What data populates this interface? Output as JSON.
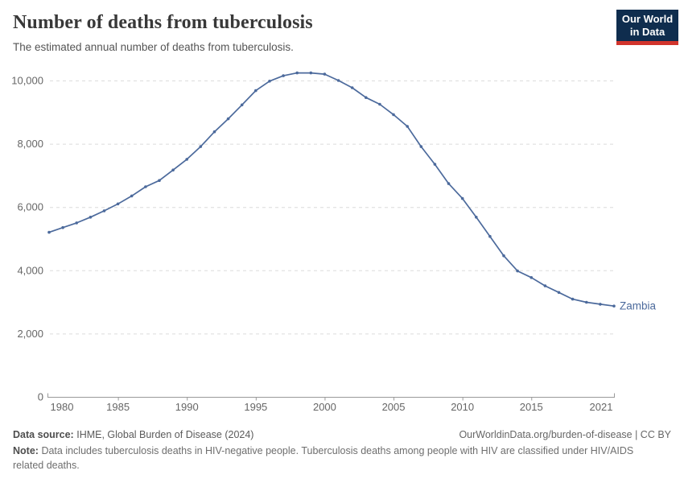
{
  "header": {
    "title": "Number of deaths from tuberculosis",
    "subtitle": "The estimated annual number of deaths from tuberculosis.",
    "logo": {
      "line1": "Our World",
      "line2": "in Data"
    }
  },
  "chart_data": {
    "type": "line",
    "title": "Number of deaths from tuberculosis",
    "xlabel": "",
    "ylabel": "",
    "xlim": [
      1980,
      2021
    ],
    "ylim": [
      0,
      10000
    ],
    "grid": "horizontal-dashed",
    "legend_position": "end-of-line-label",
    "series": [
      {
        "name": "Zambia",
        "x": [
          1980,
          1981,
          1982,
          1983,
          1984,
          1985,
          1986,
          1987,
          1988,
          1989,
          1990,
          1991,
          1992,
          1993,
          1994,
          1995,
          1996,
          1997,
          1998,
          1999,
          2000,
          2001,
          2002,
          2003,
          2004,
          2005,
          2006,
          2007,
          2008,
          2009,
          2010,
          2011,
          2012,
          2013,
          2014,
          2015,
          2016,
          2017,
          2018,
          2019,
          2020,
          2021
        ],
        "values": [
          5200,
          5350,
          5500,
          5680,
          5880,
          6100,
          6350,
          6640,
          6840,
          7170,
          7510,
          7910,
          8380,
          8790,
          9230,
          9680,
          9980,
          10150,
          10240,
          10240,
          10200,
          10000,
          9770,
          9460,
          9250,
          8920,
          8550,
          7910,
          7350,
          6740,
          6270,
          5680,
          5070,
          4460,
          3980,
          3770,
          3510,
          3300,
          3090,
          2990,
          2930,
          2870
        ]
      }
    ],
    "yticks": [
      {
        "value": 0,
        "label": "0"
      },
      {
        "value": 2000,
        "label": "2,000"
      },
      {
        "value": 4000,
        "label": "4,000"
      },
      {
        "value": 6000,
        "label": "6,000"
      },
      {
        "value": 8000,
        "label": "8,000"
      },
      {
        "value": 10000,
        "label": "10,000"
      }
    ],
    "xticks": [
      {
        "year": 1980,
        "label": "1980"
      },
      {
        "year": 1985,
        "label": "1985"
      },
      {
        "year": 1990,
        "label": "1990"
      },
      {
        "year": 1995,
        "label": "1995"
      },
      {
        "year": 2000,
        "label": "2000"
      },
      {
        "year": 2005,
        "label": "2005"
      },
      {
        "year": 2010,
        "label": "2010"
      },
      {
        "year": 2015,
        "label": "2015"
      },
      {
        "year": 2021,
        "label": "2021"
      }
    ]
  },
  "colors": {
    "line": "#4c6a9c",
    "grid": "#dcdcdc",
    "axis": "#999999",
    "tick_text": "#666666",
    "logo_bg": "#0f2d4e",
    "logo_bar": "#d1342c"
  },
  "footer": {
    "source_label": "Data source:",
    "source_text": "IHME, Global Burden of Disease (2024)",
    "credit": "OurWorldinData.org/burden-of-disease | CC BY",
    "note_label": "Note:",
    "note_text": "Data includes tuberculosis deaths in HIV-negative people. Tuberculosis deaths among people with HIV are classified under HIV/AIDS related deaths."
  }
}
